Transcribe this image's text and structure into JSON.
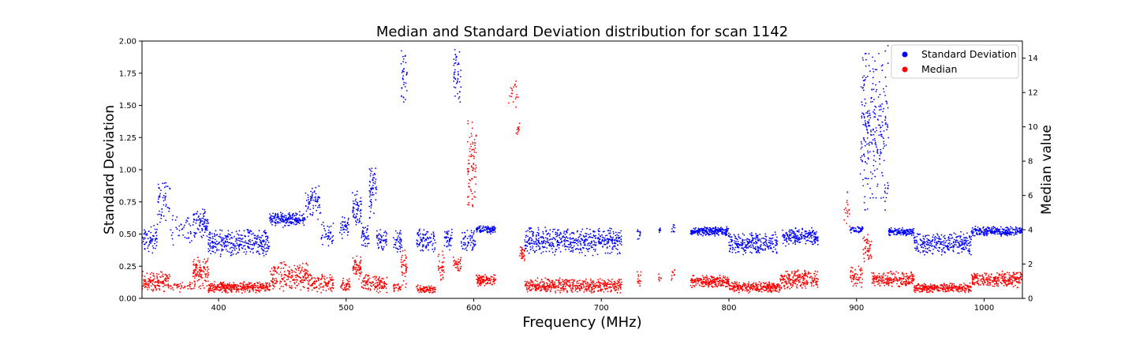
{
  "chart_data": {
    "type": "scatter",
    "title": "Median and Standard Deviation distribution for scan 1142",
    "xlabel": "Frequency (MHz)",
    "ylabel": "Standard Deviation",
    "y2label": "Median value",
    "xlim": [
      340,
      1030
    ],
    "ylim": [
      0,
      2.0
    ],
    "y2lim": [
      0,
      15
    ],
    "x_ticks": [
      400,
      500,
      600,
      700,
      800,
      900,
      1000
    ],
    "y_ticks": [
      "0.00",
      "0.25",
      "0.50",
      "0.75",
      "1.00",
      "1.25",
      "1.50",
      "1.75",
      "2.00"
    ],
    "y2_ticks": [
      0,
      2,
      4,
      6,
      8,
      10,
      12,
      14
    ],
    "grid": false,
    "legend_position": "top-right",
    "series": [
      {
        "name": "Standard Deviation",
        "axis": "left",
        "color": "#0000ff",
        "segments": [
          {
            "x0": 340,
            "x1": 352,
            "lo": 0.35,
            "hi": 0.58,
            "n": 70
          },
          {
            "x0": 352,
            "x1": 362,
            "lo": 0.55,
            "hi": 1.0,
            "n": 50
          },
          {
            "x0": 362,
            "x1": 380,
            "lo": 0.4,
            "hi": 0.7,
            "n": 40
          },
          {
            "x0": 380,
            "x1": 392,
            "lo": 0.45,
            "hi": 0.72,
            "n": 90
          },
          {
            "x0": 392,
            "x1": 440,
            "lo": 0.32,
            "hi": 0.55,
            "n": 320
          },
          {
            "x0": 440,
            "x1": 468,
            "lo": 0.55,
            "hi": 0.68,
            "n": 200
          },
          {
            "x0": 468,
            "x1": 480,
            "lo": 0.6,
            "hi": 0.9,
            "n": 70
          },
          {
            "x0": 480,
            "x1": 490,
            "lo": 0.4,
            "hi": 0.6,
            "n": 40
          },
          {
            "x0": 495,
            "x1": 502,
            "lo": 0.45,
            "hi": 0.65,
            "n": 40
          },
          {
            "x0": 505,
            "x1": 512,
            "lo": 0.55,
            "hi": 0.85,
            "n": 60
          },
          {
            "x0": 512,
            "x1": 518,
            "lo": 0.38,
            "hi": 0.6,
            "n": 40
          },
          {
            "x0": 518,
            "x1": 524,
            "lo": 0.6,
            "hi": 1.1,
            "n": 60
          },
          {
            "x0": 524,
            "x1": 532,
            "lo": 0.35,
            "hi": 0.55,
            "n": 50
          },
          {
            "x0": 537,
            "x1": 544,
            "lo": 0.35,
            "hi": 0.55,
            "n": 40
          },
          {
            "x0": 543,
            "x1": 548,
            "lo": 1.45,
            "hi": 2.0,
            "n": 35
          },
          {
            "x0": 555,
            "x1": 570,
            "lo": 0.35,
            "hi": 0.55,
            "n": 90
          },
          {
            "x0": 577,
            "x1": 583,
            "lo": 0.35,
            "hi": 0.55,
            "n": 40
          },
          {
            "x0": 584,
            "x1": 590,
            "lo": 1.5,
            "hi": 2.0,
            "n": 45
          },
          {
            "x0": 590,
            "x1": 602,
            "lo": 0.35,
            "hi": 0.55,
            "n": 60
          },
          {
            "x0": 602,
            "x1": 617,
            "lo": 0.5,
            "hi": 0.57,
            "n": 110
          },
          {
            "x0": 640,
            "x1": 716,
            "lo": 0.33,
            "hi": 0.56,
            "n": 500
          },
          {
            "x0": 728,
            "x1": 731,
            "lo": 0.45,
            "hi": 0.55,
            "n": 12
          },
          {
            "x0": 745,
            "x1": 747,
            "lo": 0.5,
            "hi": 0.56,
            "n": 8
          },
          {
            "x0": 755,
            "x1": 758,
            "lo": 0.5,
            "hi": 0.58,
            "n": 10
          },
          {
            "x0": 770,
            "x1": 800,
            "lo": 0.48,
            "hi": 0.56,
            "n": 240
          },
          {
            "x0": 800,
            "x1": 838,
            "lo": 0.33,
            "hi": 0.52,
            "n": 260
          },
          {
            "x0": 842,
            "x1": 870,
            "lo": 0.4,
            "hi": 0.56,
            "n": 200
          },
          {
            "x0": 895,
            "x1": 905,
            "lo": 0.5,
            "hi": 0.56,
            "n": 50
          },
          {
            "x0": 903,
            "x1": 925,
            "lo": 0.6,
            "hi": 2.0,
            "n": 260
          },
          {
            "x0": 925,
            "x1": 945,
            "lo": 0.48,
            "hi": 0.55,
            "n": 140
          },
          {
            "x0": 945,
            "x1": 990,
            "lo": 0.33,
            "hi": 0.52,
            "n": 300
          },
          {
            "x0": 990,
            "x1": 1030,
            "lo": 0.48,
            "hi": 0.56,
            "n": 260
          }
        ]
      },
      {
        "name": "Median",
        "axis": "right",
        "color": "#ff0000",
        "segments": [
          {
            "x0": 340,
            "x1": 362,
            "lo": 0.3,
            "hi": 1.6,
            "n": 150
          },
          {
            "x0": 362,
            "x1": 380,
            "lo": 0.3,
            "hi": 1.0,
            "n": 40
          },
          {
            "x0": 380,
            "x1": 392,
            "lo": 0.5,
            "hi": 2.5,
            "n": 120
          },
          {
            "x0": 392,
            "x1": 440,
            "lo": 0.3,
            "hi": 1.0,
            "n": 350
          },
          {
            "x0": 440,
            "x1": 470,
            "lo": 0.4,
            "hi": 2.2,
            "n": 200
          },
          {
            "x0": 470,
            "x1": 490,
            "lo": 0.3,
            "hi": 1.5,
            "n": 120
          },
          {
            "x0": 495,
            "x1": 503,
            "lo": 0.3,
            "hi": 1.2,
            "n": 50
          },
          {
            "x0": 505,
            "x1": 512,
            "lo": 1.0,
            "hi": 2.5,
            "n": 60
          },
          {
            "x0": 512,
            "x1": 520,
            "lo": 0.4,
            "hi": 1.5,
            "n": 50
          },
          {
            "x0": 520,
            "x1": 532,
            "lo": 0.3,
            "hi": 1.4,
            "n": 80
          },
          {
            "x0": 537,
            "x1": 543,
            "lo": 0.3,
            "hi": 1.0,
            "n": 30
          },
          {
            "x0": 543,
            "x1": 548,
            "lo": 0.5,
            "hi": 3.0,
            "n": 40
          },
          {
            "x0": 555,
            "x1": 570,
            "lo": 0.3,
            "hi": 0.8,
            "n": 90
          },
          {
            "x0": 572,
            "x1": 577,
            "lo": 1.0,
            "hi": 2.8,
            "n": 35
          },
          {
            "x0": 584,
            "x1": 590,
            "lo": 1.5,
            "hi": 2.5,
            "n": 35
          },
          {
            "x0": 595,
            "x1": 602,
            "lo": 4.5,
            "hi": 10.5,
            "n": 80
          },
          {
            "x0": 602,
            "x1": 617,
            "lo": 0.7,
            "hi": 1.4,
            "n": 120
          },
          {
            "x0": 627,
            "x1": 635,
            "lo": 11.0,
            "hi": 13.0,
            "n": 20
          },
          {
            "x0": 633,
            "x1": 636,
            "lo": 9.5,
            "hi": 10.3,
            "n": 12
          },
          {
            "x0": 636,
            "x1": 640,
            "lo": 2.2,
            "hi": 3.2,
            "n": 30
          },
          {
            "x0": 640,
            "x1": 716,
            "lo": 0.3,
            "hi": 1.2,
            "n": 520
          },
          {
            "x0": 728,
            "x1": 731,
            "lo": 0.5,
            "hi": 1.8,
            "n": 15
          },
          {
            "x0": 745,
            "x1": 747,
            "lo": 0.8,
            "hi": 1.6,
            "n": 8
          },
          {
            "x0": 755,
            "x1": 758,
            "lo": 0.8,
            "hi": 1.8,
            "n": 10
          },
          {
            "x0": 770,
            "x1": 800,
            "lo": 0.6,
            "hi": 1.4,
            "n": 240
          },
          {
            "x0": 800,
            "x1": 840,
            "lo": 0.3,
            "hi": 1.0,
            "n": 280
          },
          {
            "x0": 840,
            "x1": 870,
            "lo": 0.5,
            "hi": 1.7,
            "n": 220
          },
          {
            "x0": 890,
            "x1": 895,
            "lo": 4.0,
            "hi": 6.5,
            "n": 18
          },
          {
            "x0": 895,
            "x1": 905,
            "lo": 0.5,
            "hi": 2.0,
            "n": 60
          },
          {
            "x0": 905,
            "x1": 912,
            "lo": 2.0,
            "hi": 3.8,
            "n": 50
          },
          {
            "x0": 912,
            "x1": 945,
            "lo": 0.6,
            "hi": 1.6,
            "n": 230
          },
          {
            "x0": 945,
            "x1": 990,
            "lo": 0.3,
            "hi": 0.9,
            "n": 320
          },
          {
            "x0": 990,
            "x1": 1030,
            "lo": 0.6,
            "hi": 1.6,
            "n": 280
          }
        ]
      }
    ]
  }
}
